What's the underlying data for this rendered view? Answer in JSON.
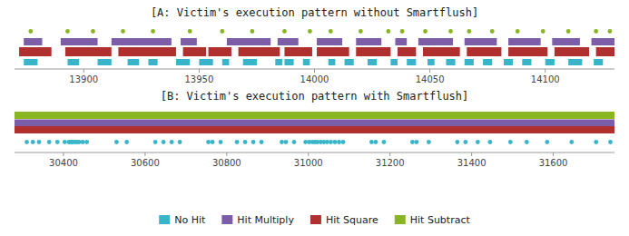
{
  "chart_data": [
    {
      "type": "timeline",
      "title": "[A: Victim's execution pattern without Smartflush]",
      "xlim": [
        13870,
        14130
      ],
      "xticks": [
        13900,
        13950,
        14000,
        14050,
        14100
      ],
      "legend": "bottom",
      "series": [
        {
          "name": "No Hit",
          "color": "#38b5c8",
          "type": "segments",
          "values": [
            [
              13874,
              13880
            ],
            [
              13893,
              13898
            ],
            [
              13906,
              13912
            ],
            [
              13919,
              13924
            ],
            [
              13928,
              13932
            ],
            [
              13940,
              13946
            ],
            [
              13950,
              13956
            ],
            [
              13960,
              13963
            ],
            [
              13969,
              13975
            ],
            [
              13983,
              13986
            ],
            [
              13987,
              13991
            ],
            [
              13995,
              13998
            ],
            [
              14006,
              14009
            ],
            [
              14013,
              14017
            ],
            [
              14023,
              14027
            ],
            [
              14033,
              14036
            ],
            [
              14040,
              14044
            ],
            [
              14049,
              14052
            ],
            [
              14057,
              14061
            ],
            [
              14065,
              14069
            ],
            [
              14073,
              14077
            ],
            [
              14082,
              14086
            ],
            [
              14090,
              14094
            ],
            [
              14100,
              14104
            ],
            [
              14110,
              14116
            ],
            [
              14121,
              14125
            ]
          ]
        },
        {
          "name": "Hit Multiply",
          "color": "#7b5ea7",
          "type": "segments",
          "values": [
            [
              13874,
              13882
            ],
            [
              13890,
              13906
            ],
            [
              13912,
              13938
            ],
            [
              13942,
              13949
            ],
            [
              13962,
              13981
            ],
            [
              13984,
              13993
            ],
            [
              14001,
              14012
            ],
            [
              14018,
              14029
            ],
            [
              14035,
              14040
            ],
            [
              14045,
              14060
            ],
            [
              14065,
              14079
            ],
            [
              14084,
              14098
            ],
            [
              14103,
              14115
            ],
            [
              14120,
              14130
            ]
          ]
        },
        {
          "name": "Hit Square",
          "color": "#b03030",
          "type": "segments",
          "values": [
            [
              13872,
              13886
            ],
            [
              13892,
              13912
            ],
            [
              13915,
              13940
            ],
            [
              13943,
              13953
            ],
            [
              13954,
              13964
            ],
            [
              13967,
              13985
            ],
            [
              13987,
              13999
            ],
            [
              14001,
              14015
            ],
            [
              14018,
              14033
            ],
            [
              14036,
              14044
            ],
            [
              14047,
              14063
            ],
            [
              14066,
              14081
            ],
            [
              14084,
              14101
            ],
            [
              14104,
              14119
            ],
            [
              14122,
              14130
            ]
          ]
        },
        {
          "name": "Hit Subtract",
          "color": "#8ab522",
          "type": "scatter",
          "values": [
            13877,
            13893,
            13904,
            13917,
            13930,
            13946,
            13960,
            13973,
            13987,
            13998,
            14007,
            14020,
            14032,
            14038,
            14048,
            14059,
            14067,
            14077,
            14088,
            14099,
            14110,
            14122,
            14128
          ]
        }
      ]
    },
    {
      "type": "timeline",
      "title": "[B: Victim's execution pattern with Smartflush]",
      "xlim": [
        30280,
        31750
      ],
      "xticks": [
        30400,
        30600,
        30800,
        31000,
        31200,
        31400,
        31600
      ],
      "series": [
        {
          "color": "#38b5c8",
          "type": "scatter",
          "values": [
            30310,
            30325,
            30340,
            30365,
            30385,
            30403,
            30413,
            30418,
            30422,
            30428,
            30433,
            30438,
            30447,
            30457,
            30530,
            30555,
            30625,
            30645,
            30665,
            30685,
            30755,
            30765,
            30785,
            30825,
            30845,
            30865,
            30885,
            30935,
            30945,
            30965,
            30993,
            31002,
            31010,
            31016,
            31022,
            31030,
            31038,
            31046,
            31055,
            31065,
            31075,
            31085,
            31155,
            31165,
            31185,
            31255,
            31265,
            31295,
            31365,
            31385,
            31415,
            31445,
            31495,
            31535,
            31585,
            31645,
            31705,
            31740
          ]
        },
        {
          "color": "#7b5ea7",
          "type": "segments",
          "values": [
            [
              30280,
              31750
            ]
          ]
        },
        {
          "color": "#b03030",
          "type": "segments",
          "values": [
            [
              30280,
              31750
            ]
          ]
        },
        {
          "color": "#8ab522",
          "type": "segments",
          "values": [
            [
              30280,
              31750
            ]
          ]
        }
      ]
    }
  ]
}
